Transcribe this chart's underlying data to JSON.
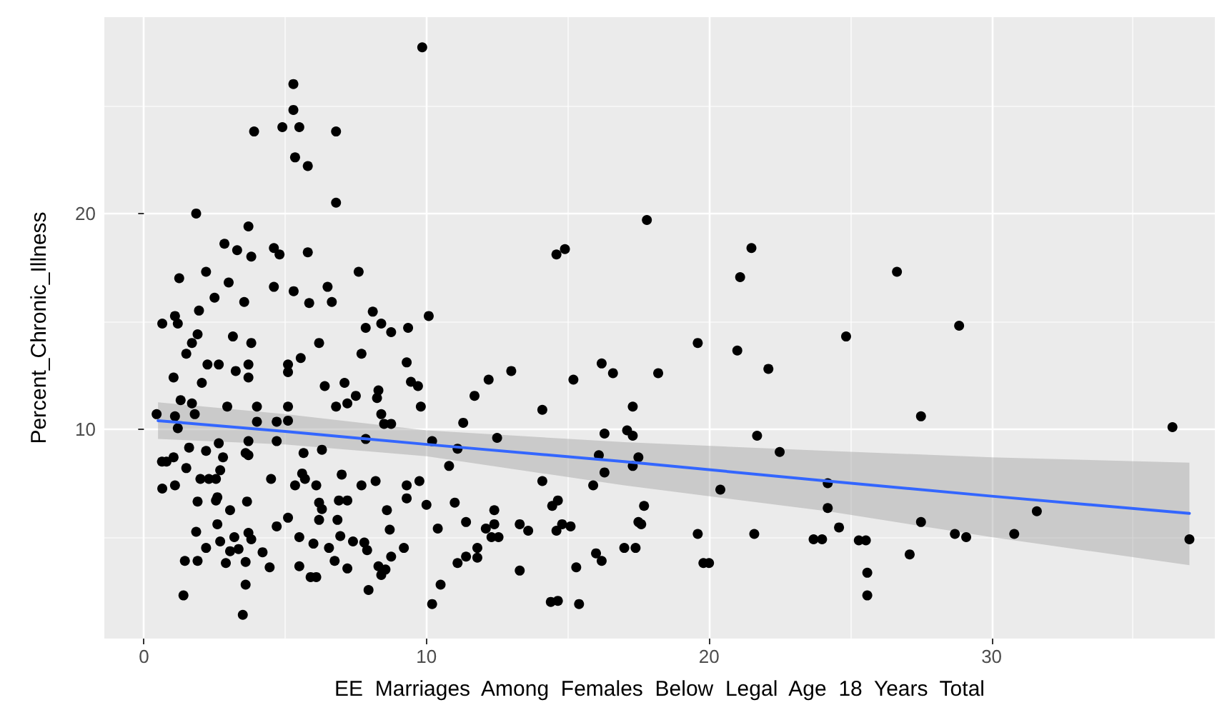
{
  "chart_data": {
    "type": "scatter",
    "xlabel": "EE  Marriages  Among  Females  Below  Legal  Age  18  Years  Total",
    "ylabel": "Percent_Chronic_Illness",
    "xlim": [
      -1.4,
      37.9
    ],
    "ylim": [
      0.3,
      29.1
    ],
    "xticks": [
      0,
      {
        "value": 5,
        "label": null
      },
      10,
      {
        "value": 15,
        "label": null
      },
      20,
      {
        "value": 25,
        "label": null
      },
      30,
      {
        "value": 35,
        "label": null
      }
    ],
    "yticks": [
      {
        "value": 5,
        "label": null
      },
      10,
      {
        "value": 15,
        "label": null
      },
      20,
      {
        "value": 25,
        "label": null
      }
    ],
    "grid": true,
    "marker": "circle",
    "series": [
      {
        "type": "scatter",
        "color": "#000000",
        "x": [
          9.85,
          5.29,
          5.29,
          3.9,
          4.9,
          5.5,
          6.8,
          5.35,
          5.8,
          6.8,
          1.85,
          3.7,
          2.85,
          3.3,
          3.8,
          4.6,
          4.8,
          5.8,
          7.6,
          1.25,
          2.2,
          3.0,
          2.5,
          3.55,
          4.6,
          5.3,
          5.85,
          6.5,
          6.65,
          0.65,
          1.1,
          1.2,
          1.95,
          1.9,
          1.7,
          1.5,
          3.15,
          3.8,
          6.2,
          8.1,
          8.4,
          7.85,
          8.75,
          9.35,
          7.7,
          2.25,
          2.65,
          3.25,
          3.7,
          3.7,
          5.1,
          5.1,
          5.55,
          1.05,
          2.05,
          6.4,
          7.1,
          7.5,
          8.25,
          8.3,
          9.3,
          9.45,
          9.7,
          9.8,
          1.3,
          1.7,
          2.95,
          4.0,
          5.1,
          6.8,
          7.2,
          0.45,
          1.1,
          1.8,
          4.0,
          4.7,
          5.1,
          1.2,
          8.4,
          8.5,
          8.75,
          4.7,
          3.7,
          2.65,
          7.85,
          0.64,
          0.8,
          1.05,
          1.6,
          2.2,
          2.8,
          3.6,
          3.7,
          5.65,
          6.3,
          1.5,
          2.0,
          2.3,
          2.55,
          2.7,
          4.5,
          5.6,
          5.7,
          5.35,
          6.1,
          7.0,
          7.7,
          8.2,
          0.65,
          1.1,
          9.3,
          9.75,
          1.9,
          2.55,
          3.65,
          2.6,
          6.2,
          6.9,
          7.2,
          9.3,
          3.05,
          6.3,
          8.6,
          10.0,
          2.6,
          4.7,
          5.1,
          6.2,
          6.85,
          1.85,
          2.7,
          3.2,
          3.7,
          3.8,
          5.5,
          6.0,
          6.95,
          7.4,
          7.8,
          8.7,
          9.2,
          2.2,
          3.05,
          3.35,
          1.45,
          1.9,
          2.9,
          3.6,
          4.2,
          4.45,
          5.5,
          6.55,
          6.75,
          7.2,
          7.9,
          8.3,
          8.55,
          8.75,
          5.9,
          6.1,
          8.4,
          3.6,
          7.95,
          1.4,
          3.5,
          10.2,
          10.08,
          17.8,
          14.6,
          14.9,
          21.5,
          21.1,
          19.6,
          21.0,
          13.0,
          12.2,
          15.2,
          11.7,
          18.2,
          16.2,
          16.6,
          14.1,
          17.3,
          22.1,
          11.3,
          16.3,
          17.1,
          17.3,
          21.7,
          22.5,
          10.2,
          11.1,
          12.5,
          16.1,
          17.5,
          16.3,
          17.3,
          10.8,
          14.1,
          15.9,
          20.4,
          11.0,
          14.45,
          14.65,
          17.7,
          24.2,
          24.2,
          10.4,
          11.4,
          12.1,
          12.4,
          12.4,
          13.3,
          13.6,
          14.6,
          14.8,
          15.1,
          17.5,
          17.6,
          12.3,
          12.55,
          11.8,
          19.6,
          21.6,
          23.7,
          11.1,
          11.4,
          11.8,
          13.3,
          15.3,
          16.0,
          16.2,
          17.0,
          17.4,
          19.8,
          20.0,
          10.5,
          14.4,
          14.65,
          15.4,
          26.65,
          24.85,
          28.85,
          27.5,
          36.4,
          24.6,
          24.0,
          25.3,
          25.55,
          25.6,
          25.6,
          27.1,
          27.5,
          28.7,
          29.1,
          30.8,
          31.6,
          37.0
        ],
        "values": [
          27.7,
          26.0,
          24.8,
          23.8,
          24.0,
          24.0,
          23.8,
          22.6,
          22.2,
          20.5,
          20.0,
          19.4,
          18.6,
          18.3,
          18.0,
          18.4,
          18.1,
          18.2,
          17.3,
          17.0,
          17.3,
          16.8,
          16.1,
          15.9,
          16.6,
          16.4,
          15.85,
          16.6,
          15.9,
          14.9,
          15.25,
          14.9,
          15.5,
          14.4,
          14.0,
          13.5,
          14.3,
          14.0,
          14.0,
          15.45,
          14.9,
          14.7,
          14.5,
          14.7,
          13.5,
          13.0,
          13.0,
          12.7,
          13.0,
          12.4,
          13.0,
          12.65,
          13.3,
          12.4,
          12.15,
          12.0,
          12.15,
          11.55,
          11.45,
          11.8,
          13.1,
          12.2,
          12.0,
          11.05,
          11.35,
          11.2,
          11.05,
          11.05,
          11.05,
          11.05,
          11.2,
          10.7,
          10.6,
          10.7,
          10.35,
          10.35,
          10.4,
          10.05,
          10.7,
          10.25,
          10.25,
          9.45,
          9.45,
          9.35,
          9.55,
          8.5,
          8.5,
          8.7,
          9.15,
          9.0,
          8.7,
          8.9,
          8.8,
          8.9,
          9.05,
          8.2,
          7.7,
          7.7,
          7.7,
          8.1,
          7.7,
          7.95,
          7.7,
          7.4,
          7.4,
          7.9,
          7.4,
          7.6,
          7.25,
          7.4,
          7.4,
          7.6,
          6.65,
          6.7,
          6.65,
          6.85,
          6.6,
          6.7,
          6.7,
          6.8,
          6.25,
          6.3,
          6.25,
          6.5,
          5.6,
          5.5,
          5.9,
          5.8,
          5.8,
          5.25,
          4.8,
          5.0,
          5.2,
          4.9,
          5.0,
          4.7,
          5.05,
          4.8,
          4.75,
          5.35,
          4.5,
          4.5,
          4.35,
          4.45,
          3.9,
          3.9,
          3.8,
          3.85,
          4.3,
          3.6,
          3.65,
          4.5,
          3.9,
          3.55,
          4.4,
          3.65,
          3.5,
          4.1,
          3.15,
          3.15,
          3.25,
          2.8,
          2.55,
          2.3,
          1.4,
          1.9,
          15.25,
          19.7,
          18.1,
          18.35,
          18.4,
          17.05,
          14.0,
          13.65,
          12.7,
          12.3,
          12.3,
          11.55,
          12.6,
          13.05,
          12.6,
          10.9,
          11.05,
          12.8,
          10.3,
          9.8,
          9.95,
          9.7,
          9.7,
          8.95,
          9.45,
          9.1,
          9.6,
          8.8,
          8.7,
          8.0,
          8.3,
          8.3,
          7.6,
          7.4,
          7.2,
          6.6,
          6.45,
          6.7,
          6.45,
          7.5,
          6.35,
          5.4,
          5.7,
          5.4,
          6.25,
          5.6,
          5.6,
          5.3,
          5.3,
          5.6,
          5.5,
          5.7,
          5.6,
          5.0,
          5.0,
          4.5,
          5.15,
          5.15,
          4.9,
          3.8,
          4.1,
          4.05,
          3.45,
          3.6,
          4.25,
          3.9,
          4.5,
          4.5,
          3.8,
          3.8,
          2.8,
          2.0,
          2.05,
          1.9,
          17.3,
          14.3,
          14.8,
          10.6,
          10.1,
          5.45,
          4.9,
          4.85,
          4.85,
          3.35,
          2.3,
          4.2,
          5.7,
          5.15,
          5.0,
          5.15,
          6.2,
          4.9
        ]
      },
      {
        "type": "line",
        "color": "#3366ff",
        "marker": "none",
        "line_style": "solid",
        "x": [
          0.5,
          5,
          10,
          17,
          24.2,
          30,
          37
        ],
        "values": [
          10.4,
          9.9,
          9.3,
          8.5,
          7.6,
          6.9,
          6.1
        ],
        "lower": [
          9.55,
          9.3,
          8.75,
          7.4,
          6.2,
          5.0,
          3.7
        ],
        "upper": [
          11.25,
          10.7,
          9.95,
          9.4,
          9.0,
          8.7,
          8.45
        ]
      }
    ]
  }
}
